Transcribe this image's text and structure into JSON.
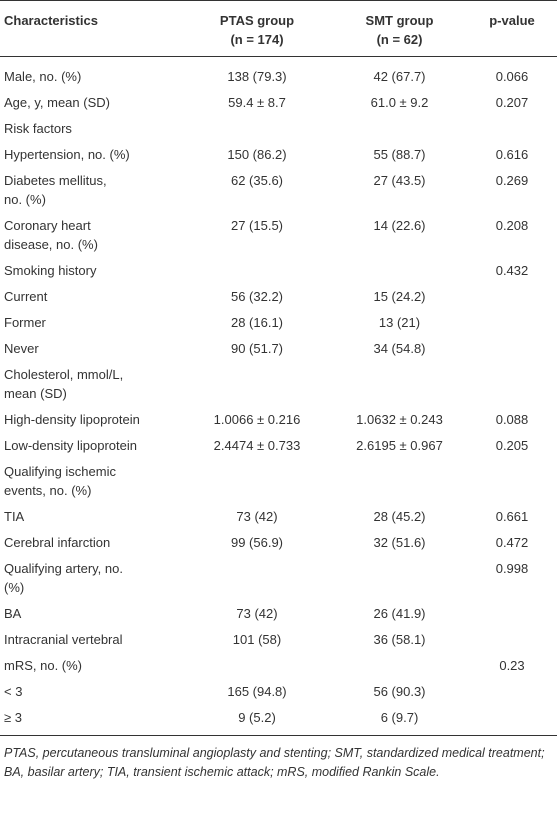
{
  "table": {
    "header": [
      [
        "Characteristics"
      ],
      [
        "PTAS group",
        "(n = 174)"
      ],
      [
        "SMT group",
        "(n = 62)"
      ],
      [
        "p-value"
      ]
    ],
    "rows": [
      [
        "Male, no. (%)",
        "138 (79.3)",
        "42 (67.7)",
        "0.066"
      ],
      [
        "Age, y, mean (SD)",
        "59.4 ± 8.7",
        "61.0 ± 9.2",
        "0.207"
      ],
      [
        "Risk factors",
        null,
        null,
        null
      ],
      [
        "Hypertension, no. (%)",
        "150 (86.2)",
        "55 (88.7)",
        "0.616"
      ],
      [
        [
          "Diabetes mellitus,",
          "no. (%)"
        ],
        "62 (35.6)",
        "27 (43.5)",
        "0.269"
      ],
      [
        [
          "Coronary heart",
          "disease, no. (%)"
        ],
        "27 (15.5)",
        "14 (22.6)",
        "0.208"
      ],
      [
        "Smoking history",
        null,
        null,
        "0.432"
      ],
      [
        "Current",
        "56 (32.2)",
        "15 (24.2)",
        null
      ],
      [
        "Former",
        "28 (16.1)",
        "13 (21)",
        null
      ],
      [
        "Never",
        "90 (51.7)",
        "34 (54.8)",
        null
      ],
      [
        [
          "Cholesterol, mmol/L,",
          "mean (SD)"
        ],
        null,
        null,
        null
      ],
      [
        "High-density lipoprotein",
        "1.0066 ± 0.216",
        "1.0632 ± 0.243",
        "0.088"
      ],
      [
        "Low-density lipoprotein",
        "2.4474 ± 0.733",
        "2.6195 ± 0.967",
        "0.205"
      ],
      [
        [
          "Qualifying ischemic",
          "events, no. (%)"
        ],
        null,
        null,
        null
      ],
      [
        "TIA",
        "73 (42)",
        "28 (45.2)",
        "0.661"
      ],
      [
        "Cerebral infarction",
        "99 (56.9)",
        "32 (51.6)",
        "0.472"
      ],
      [
        [
          "Qualifying artery, no.",
          "(%)"
        ],
        null,
        null,
        "0.998"
      ],
      [
        "BA",
        "73 (42)",
        "26 (41.9)",
        null
      ],
      [
        "Intracranial vertebral",
        "101 (58)",
        "36 (58.1)",
        null
      ],
      [
        "mRS, no. (%)",
        null,
        null,
        "0.23"
      ],
      [
        "< 3",
        "165 (94.8)",
        "56 (90.3)",
        null
      ],
      [
        "≥ 3",
        "9 (5.2)",
        "6 (9.7)",
        null
      ]
    ],
    "footnote": "PTAS, percutaneous transluminal angioplasty and stenting; SMT, standardized medical treatment; BA, basilar artery; TIA, transient ischemic attack; mRS, modified Rankin Scale."
  }
}
